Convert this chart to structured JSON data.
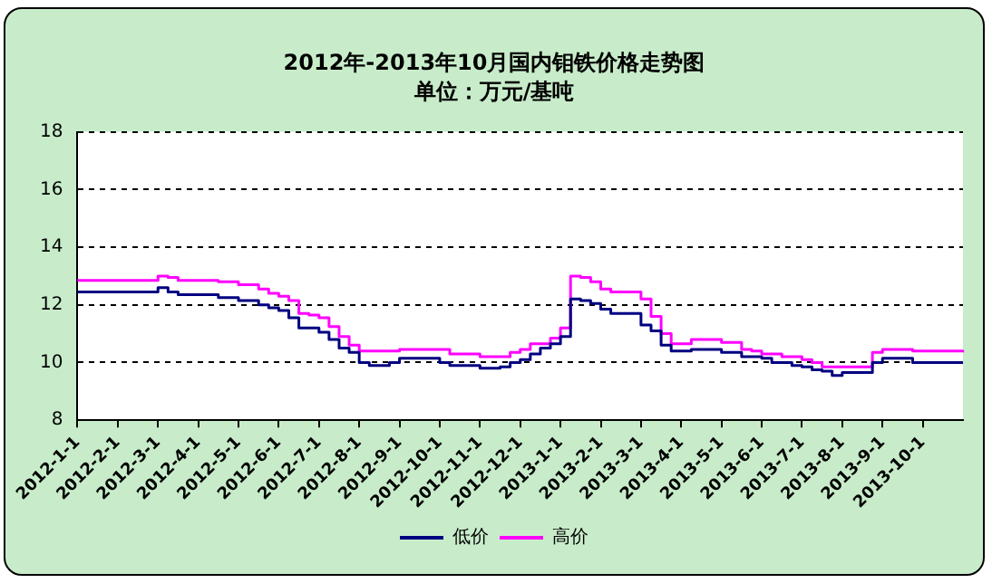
{
  "chart_data": {
    "type": "step",
    "title": "2012年-2013年10月国内钼铁价格走势图",
    "subtitle": "单位：万元/基吨",
    "categories": [
      "2012-1-1",
      null,
      null,
      null,
      "2012-2-1",
      null,
      null,
      null,
      "2012-3-1",
      null,
      null,
      null,
      "2012-4-1",
      null,
      null,
      null,
      "2012-5-1",
      null,
      null,
      null,
      "2012-6-1",
      null,
      null,
      null,
      "2012-7-1",
      null,
      null,
      null,
      "2012-8-1",
      null,
      null,
      null,
      "2012-9-1",
      null,
      null,
      null,
      "2012-10-1",
      null,
      null,
      null,
      "2012-11-1",
      null,
      null,
      null,
      "2012-12-1",
      null,
      null,
      null,
      "2013-1-1",
      null,
      null,
      null,
      "2013-2-1",
      null,
      null,
      null,
      "2013-3-1",
      null,
      null,
      null,
      "2013-4-1",
      null,
      null,
      null,
      "2013-5-1",
      null,
      null,
      null,
      "2013-6-1",
      null,
      null,
      null,
      "2013-7-1",
      null,
      null,
      null,
      "2013-8-1",
      null,
      null,
      null,
      "2013-9-1",
      null,
      null,
      null,
      "2013-10-1",
      null,
      null,
      null,
      null
    ],
    "series": [
      {
        "name": "低价",
        "color": "#000080",
        "values": [
          12.45,
          12.45,
          12.45,
          12.45,
          12.45,
          12.45,
          12.45,
          12.45,
          12.6,
          12.45,
          12.35,
          12.35,
          12.35,
          12.35,
          12.25,
          12.25,
          12.15,
          12.15,
          12.0,
          11.9,
          11.8,
          11.55,
          11.2,
          11.2,
          11.05,
          10.8,
          10.5,
          10.35,
          10.0,
          9.9,
          9.9,
          10.0,
          10.15,
          10.15,
          10.15,
          10.15,
          10.0,
          9.9,
          9.9,
          9.9,
          9.8,
          9.8,
          9.85,
          10.0,
          10.1,
          10.3,
          10.5,
          10.65,
          10.9,
          12.2,
          12.15,
          12.05,
          11.85,
          11.7,
          11.7,
          11.7,
          11.3,
          11.1,
          10.6,
          10.4,
          10.4,
          10.45,
          10.45,
          10.45,
          10.35,
          10.35,
          10.2,
          10.2,
          10.15,
          10.0,
          10.0,
          9.9,
          9.85,
          9.75,
          9.7,
          9.55,
          9.65,
          9.65,
          9.65,
          10.0,
          10.15,
          10.15,
          10.15,
          10.0,
          10.0,
          10.0,
          10.0,
          10.0,
          10.0
        ]
      },
      {
        "name": "高价",
        "color": "#ff00ff",
        "values": [
          12.85,
          12.85,
          12.85,
          12.85,
          12.85,
          12.85,
          12.85,
          12.85,
          13.0,
          12.95,
          12.85,
          12.85,
          12.85,
          12.85,
          12.8,
          12.8,
          12.7,
          12.7,
          12.55,
          12.4,
          12.3,
          12.15,
          11.7,
          11.65,
          11.55,
          11.25,
          10.9,
          10.6,
          10.4,
          10.4,
          10.4,
          10.4,
          10.45,
          10.45,
          10.45,
          10.45,
          10.45,
          10.3,
          10.3,
          10.3,
          10.2,
          10.2,
          10.2,
          10.35,
          10.45,
          10.65,
          10.65,
          10.85,
          11.2,
          13.0,
          12.95,
          12.8,
          12.55,
          12.45,
          12.45,
          12.45,
          12.2,
          11.6,
          11.0,
          10.65,
          10.65,
          10.8,
          10.8,
          10.8,
          10.7,
          10.7,
          10.45,
          10.4,
          10.3,
          10.3,
          10.2,
          10.2,
          10.1,
          10.0,
          9.85,
          9.85,
          9.85,
          9.85,
          9.85,
          10.35,
          10.45,
          10.45,
          10.45,
          10.4,
          10.4,
          10.4,
          10.4,
          10.4,
          10.35
        ]
      }
    ],
    "ylim": [
      8,
      18
    ],
    "yticks": [
      8,
      10,
      12,
      14,
      16,
      18
    ],
    "grid": "y",
    "legend": "bottom"
  }
}
